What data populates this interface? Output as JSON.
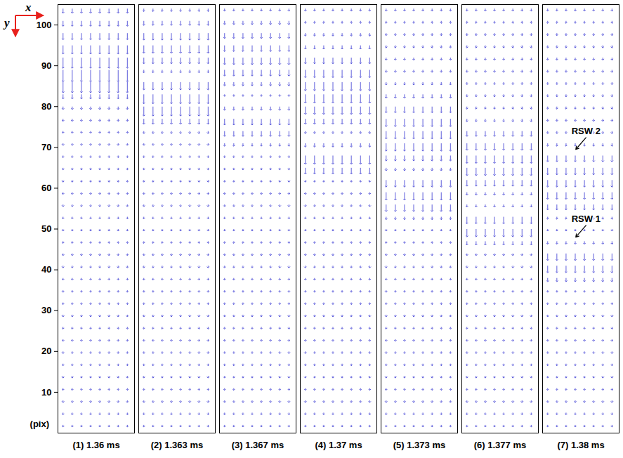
{
  "chart_data": {
    "type": "vector_field",
    "xlabel": "x",
    "ylabel": "y",
    "y_unit_label": "(pix)",
    "ylim": [
      0,
      105
    ],
    "yticks": [
      10,
      20,
      30,
      40,
      50,
      60,
      70,
      80,
      90,
      100
    ],
    "xlim": [
      0,
      15
    ],
    "tick_labels": "y",
    "color": "#1a1acc",
    "x": [
      1,
      2.8,
      4.6,
      6.4,
      8.2,
      10,
      11.8,
      13.6
    ],
    "y": [
      2,
      5,
      8,
      11,
      14,
      17,
      20,
      23,
      26,
      29,
      32,
      35,
      38,
      41,
      44,
      47,
      50,
      53,
      56,
      59,
      62,
      65,
      68,
      71,
      74,
      77,
      80,
      83,
      86,
      89,
      92,
      95,
      98,
      101,
      104
    ],
    "panels": [
      {
        "title": "(1) 1.36 ms",
        "v": [
          0.4,
          0.4,
          0.4,
          0.4,
          0.4,
          0.4,
          0.4,
          0.4,
          0.4,
          0.4,
          0.4,
          0.4,
          0.4,
          0.4,
          0.4,
          0.4,
          0.4,
          0.4,
          0.4,
          0.4,
          0.4,
          0.4,
          0.4,
          0.4,
          0.4,
          0.5,
          0.6,
          1.0,
          2.5,
          2.8,
          2.5,
          2.0,
          1.5,
          1.2,
          1.0
        ]
      },
      {
        "title": "(2) 1.363 ms",
        "v": [
          0.4,
          0.4,
          0.4,
          0.4,
          0.4,
          0.4,
          0.4,
          0.4,
          0.4,
          0.4,
          0.4,
          0.4,
          0.4,
          0.4,
          0.4,
          0.4,
          0.4,
          0.4,
          0.4,
          0.4,
          0.4,
          0.4,
          0.4,
          0.4,
          0.5,
          1.2,
          2.2,
          2.2,
          1.8,
          0.6,
          1.4,
          1.8,
          1.6,
          1.0,
          0.6
        ]
      },
      {
        "title": "(3) 1.367 ms",
        "v": [
          0.4,
          0.4,
          0.4,
          0.4,
          0.4,
          0.4,
          0.4,
          0.4,
          0.4,
          0.4,
          0.4,
          0.4,
          0.4,
          0.4,
          0.4,
          0.4,
          0.4,
          0.4,
          0.4,
          0.4,
          0.4,
          0.4,
          0.4,
          0.6,
          1.2,
          1.4,
          0.8,
          0.4,
          0.8,
          1.4,
          1.6,
          1.4,
          1.2,
          0.8,
          0.5
        ]
      },
      {
        "title": "(4) 1.37 ms",
        "v": [
          0.4,
          0.4,
          0.4,
          0.4,
          0.4,
          0.4,
          0.4,
          0.4,
          0.4,
          0.4,
          0.4,
          0.4,
          0.4,
          0.4,
          0.4,
          0.4,
          0.4,
          0.4,
          0.4,
          0.4,
          0.4,
          1.4,
          2.0,
          0.8,
          0.5,
          1.2,
          1.8,
          2.0,
          2.0,
          1.8,
          1.4,
          0.8,
          0.6,
          0.5,
          0.5
        ]
      },
      {
        "title": "(5) 1.373 ms",
        "v": [
          0.4,
          0.4,
          0.4,
          0.4,
          0.4,
          0.4,
          0.4,
          0.4,
          0.4,
          0.4,
          0.4,
          0.4,
          0.4,
          0.4,
          0.4,
          0.4,
          0.4,
          0.6,
          1.6,
          1.8,
          1.6,
          0.6,
          1.2,
          1.8,
          1.8,
          1.8,
          1.4,
          0.8,
          0.6,
          0.5,
          0.5,
          0.5,
          0.5,
          0.5,
          0.5
        ]
      },
      {
        "title": "(6) 1.377 ms",
        "v": [
          0.4,
          0.4,
          0.4,
          0.4,
          0.4,
          0.4,
          0.4,
          0.4,
          0.4,
          0.4,
          0.4,
          0.4,
          0.4,
          0.4,
          0.4,
          0.8,
          1.8,
          1.6,
          0.5,
          0.6,
          1.4,
          1.8,
          1.8,
          1.6,
          1.2,
          0.6,
          0.5,
          0.5,
          0.5,
          0.5,
          0.5,
          0.5,
          0.5,
          0.5,
          0.5
        ]
      },
      {
        "title": "(7) 1.38 ms",
        "v": [
          0.4,
          0.4,
          0.4,
          0.4,
          0.4,
          0.4,
          0.4,
          0.4,
          0.4,
          0.4,
          0.4,
          0.4,
          0.8,
          1.6,
          1.6,
          0.6,
          0.4,
          0.5,
          1.2,
          1.6,
          1.6,
          1.6,
          1.4,
          0.6,
          0.5,
          0.5,
          0.5,
          0.5,
          0.5,
          0.5,
          0.5,
          0.5,
          0.5,
          0.5,
          0.5
        ],
        "annotations": [
          {
            "text": "RSW 2",
            "x": 6.5,
            "y": 69.5,
            "text_x": 8.5,
            "text_y": 74
          },
          {
            "text": "RSW 1",
            "x": 6.5,
            "y": 48,
            "text_x": 8.5,
            "text_y": 52.5
          }
        ]
      }
    ]
  }
}
